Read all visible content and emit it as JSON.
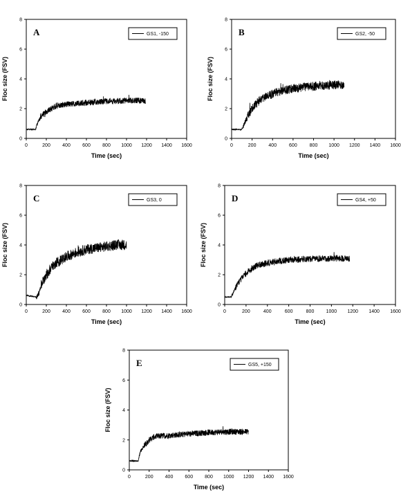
{
  "chart_data": [
    {
      "type": "line",
      "panel_label": "A",
      "xlabel": "Time (sec)",
      "ylabel": "Floc size (FSV)",
      "xlim": [
        0,
        1600
      ],
      "ylim": [
        0,
        8
      ],
      "xticks": [
        "0",
        "200",
        "400",
        "600",
        "800",
        "1000",
        "1200",
        "1400",
        "1600"
      ],
      "yticks": [
        "0",
        "2",
        "4",
        "6",
        "8"
      ],
      "legend_position": "top-right",
      "series": [
        {
          "name": "GS1, -150",
          "x": [
            0,
            90,
            100,
            130,
            150,
            200,
            250,
            300,
            350,
            400,
            500,
            600,
            700,
            800,
            900,
            1000,
            1100,
            1190
          ],
          "y": [
            0.6,
            0.6,
            0.8,
            1.3,
            1.5,
            1.8,
            2.0,
            2.2,
            2.25,
            2.3,
            2.35,
            2.4,
            2.45,
            2.5,
            2.5,
            2.55,
            2.55,
            2.5
          ],
          "noise": 0.2
        }
      ]
    },
    {
      "type": "line",
      "panel_label": "B",
      "xlabel": "Time (sec)",
      "ylabel": "Floc size (FSV)",
      "xlim": [
        0,
        1600
      ],
      "ylim": [
        0,
        8
      ],
      "xticks": [
        "0",
        "200",
        "400",
        "600",
        "800",
        "1000",
        "1200",
        "1400",
        "1600"
      ],
      "yticks": [
        "0",
        "2",
        "4",
        "6",
        "8"
      ],
      "legend_position": "top-right",
      "series": [
        {
          "name": "GS2, -50",
          "x": [
            0,
            100,
            120,
            150,
            200,
            250,
            300,
            400,
            500,
            600,
            700,
            800,
            900,
            1000,
            1100
          ],
          "y": [
            0.6,
            0.6,
            0.9,
            1.4,
            2.0,
            2.4,
            2.7,
            3.0,
            3.2,
            3.35,
            3.45,
            3.5,
            3.55,
            3.6,
            3.6
          ],
          "noise": 0.3
        }
      ]
    },
    {
      "type": "line",
      "panel_label": "C",
      "xlabel": "Time (sec)",
      "ylabel": "Floc size (FSV)",
      "xlim": [
        0,
        1600
      ],
      "ylim": [
        0,
        8
      ],
      "xticks": [
        "0",
        "200",
        "400",
        "600",
        "800",
        "1000",
        "1200",
        "1400",
        "1600"
      ],
      "yticks": [
        "0",
        "2",
        "4",
        "6",
        "8"
      ],
      "legend_position": "top-right",
      "series": [
        {
          "name": "GS3, 0",
          "x": [
            0,
            100,
            130,
            150,
            200,
            250,
            300,
            400,
            500,
            600,
            700,
            800,
            900,
            1000
          ],
          "y": [
            0.6,
            0.5,
            0.8,
            1.3,
            2.0,
            2.5,
            2.8,
            3.2,
            3.5,
            3.7,
            3.8,
            3.9,
            4.0,
            4.0
          ],
          "noise": 0.35
        }
      ]
    },
    {
      "type": "line",
      "panel_label": "D",
      "xlabel": "Time (sec)",
      "ylabel": "Floc size (FSV)",
      "xlim": [
        0,
        1600
      ],
      "ylim": [
        0,
        8
      ],
      "xticks": [
        "0",
        "200",
        "400",
        "600",
        "800",
        "1000",
        "1200",
        "1400",
        "1600"
      ],
      "yticks": [
        "0",
        "2",
        "4",
        "6",
        "8"
      ],
      "legend_position": "top-right",
      "series": [
        {
          "name": "GS4, +50",
          "x": [
            0,
            60,
            80,
            100,
            150,
            200,
            250,
            300,
            400,
            500,
            600,
            800,
            1000,
            1170
          ],
          "y": [
            0.5,
            0.5,
            0.8,
            1.1,
            1.7,
            2.1,
            2.4,
            2.6,
            2.8,
            2.9,
            3.0,
            3.05,
            3.1,
            3.1
          ],
          "noise": 0.22
        }
      ]
    },
    {
      "type": "line",
      "panel_label": "E",
      "xlabel": "Time (sec)",
      "ylabel": "Floc size (FSV)",
      "xlim": [
        0,
        1600
      ],
      "ylim": [
        0,
        8
      ],
      "xticks": [
        "0",
        "200",
        "400",
        "600",
        "800",
        "1000",
        "1200",
        "1400",
        "1600"
      ],
      "yticks": [
        "0",
        "2",
        "4",
        "6",
        "8"
      ],
      "legend_position": "top-right",
      "series": [
        {
          "name": "GS5, +150",
          "x": [
            0,
            90,
            110,
            150,
            200,
            250,
            300,
            400,
            500,
            600,
            800,
            1000,
            1200
          ],
          "y": [
            0.6,
            0.6,
            1.2,
            1.6,
            2.0,
            2.2,
            2.25,
            2.3,
            2.35,
            2.4,
            2.5,
            2.55,
            2.55
          ],
          "noise": 0.2
        }
      ]
    }
  ]
}
